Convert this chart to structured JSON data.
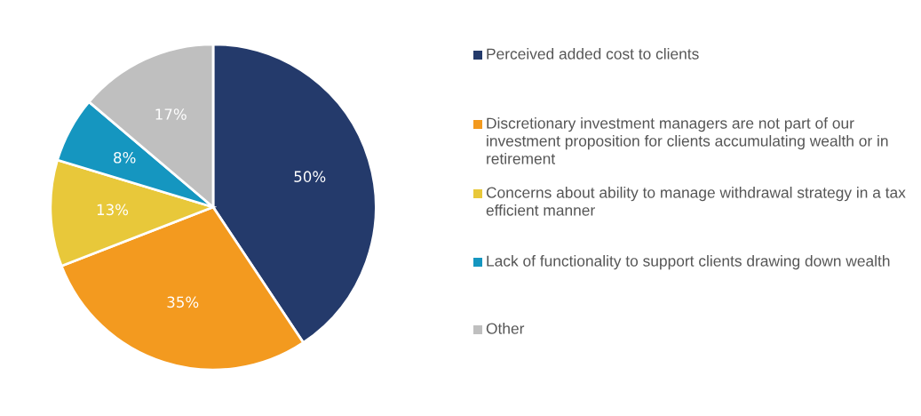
{
  "chart_data": {
    "type": "pie",
    "categories": [
      "Perceived added cost to clients",
      "Discretionary investment managers are not part of our investment proposition for clients accumulating wealth or in retirement",
      "Concerns about ability to manage withdrawal strategy in a tax efficient manner",
      "Lack of functionality to support clients drawing down wealth",
      "Other"
    ],
    "values": [
      50,
      35,
      13,
      8,
      17
    ],
    "colors": [
      "#243a6b",
      "#f39a1f",
      "#e8c83a",
      "#1596c0",
      "#bfbfbf"
    ],
    "value_labels": [
      "50%",
      "35%",
      "13%",
      "8%",
      "17%"
    ],
    "legend": "right"
  }
}
